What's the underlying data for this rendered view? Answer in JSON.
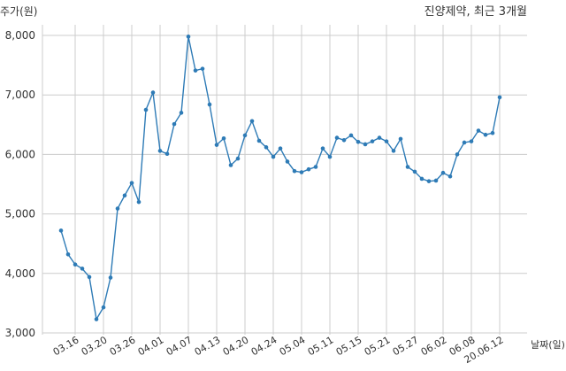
{
  "chart_data": {
    "type": "line",
    "title": "진양제약, 최근 3개월",
    "ylabel": "주가(원)",
    "xlabel": "날짜(일)",
    "ylim": [
      3000,
      8000
    ],
    "y_ticks": [
      3000,
      4000,
      5000,
      6000,
      7000,
      8000
    ],
    "y_tick_labels": [
      "3,000",
      "4,000",
      "5,000",
      "6,000",
      "7,000",
      "8,000"
    ],
    "x_ticks": [
      "2020-03-16",
      "2020-03-20",
      "2020-03-26",
      "2020-04-01",
      "2020-04-07",
      "2020-04-13",
      "2020-04-20",
      "2020-04-24",
      "2020-05-04",
      "2020-05-11",
      "2020-05-15",
      "2020-05-21",
      "2020-05-27",
      "2020-06-02",
      "2020-06-08",
      "2020-06-12"
    ],
    "x_tick_labels": [
      "03.16",
      "03.20",
      "03.26",
      "04.01",
      "04.07",
      "04.13",
      "04.20",
      "04.24",
      "05.04",
      "05.11",
      "05.15",
      "05.21",
      "05.27",
      "06.02",
      "06.08",
      "20.06.12"
    ],
    "grid": true,
    "color": "#2e7bb6",
    "series": [
      {
        "name": "",
        "x": [
          "2020-03-12",
          "2020-03-13",
          "2020-03-16",
          "2020-03-17",
          "2020-03-18",
          "2020-03-19",
          "2020-03-20",
          "2020-03-23",
          "2020-03-24",
          "2020-03-25",
          "2020-03-26",
          "2020-03-27",
          "2020-03-30",
          "2020-03-31",
          "2020-04-01",
          "2020-04-02",
          "2020-04-03",
          "2020-04-06",
          "2020-04-07",
          "2020-04-08",
          "2020-04-09",
          "2020-04-10",
          "2020-04-13",
          "2020-04-14",
          "2020-04-16",
          "2020-04-17",
          "2020-04-20",
          "2020-04-21",
          "2020-04-22",
          "2020-04-23",
          "2020-04-24",
          "2020-04-27",
          "2020-04-28",
          "2020-04-29",
          "2020-05-04",
          "2020-05-06",
          "2020-05-07",
          "2020-05-08",
          "2020-05-11",
          "2020-05-12",
          "2020-05-13",
          "2020-05-14",
          "2020-05-15",
          "2020-05-18",
          "2020-05-19",
          "2020-05-20",
          "2020-05-21",
          "2020-05-22",
          "2020-05-25",
          "2020-05-26",
          "2020-05-27",
          "2020-05-28",
          "2020-05-29",
          "2020-06-01",
          "2020-06-02",
          "2020-06-03",
          "2020-06-04",
          "2020-06-05",
          "2020-06-08",
          "2020-06-09",
          "2020-06-10",
          "2020-06-11",
          "2020-06-12"
        ],
        "y": [
          4720,
          4320,
          4150,
          4080,
          3940,
          3230,
          3430,
          3930,
          5090,
          5310,
          5520,
          5200,
          6750,
          7040,
          6060,
          6010,
          6510,
          6700,
          7980,
          7410,
          7440,
          6840,
          6160,
          6270,
          5820,
          5930,
          6320,
          6560,
          6230,
          6120,
          5960,
          6100,
          5880,
          5720,
          5700,
          5750,
          5790,
          6100,
          5960,
          6280,
          6240,
          6320,
          6210,
          6170,
          6220,
          6280,
          6220,
          6060,
          6260,
          5790,
          5710,
          5590,
          5550,
          5560,
          5690,
          5630,
          6000,
          6200,
          6220,
          6400,
          6330,
          6360,
          6960
        ]
      }
    ]
  }
}
